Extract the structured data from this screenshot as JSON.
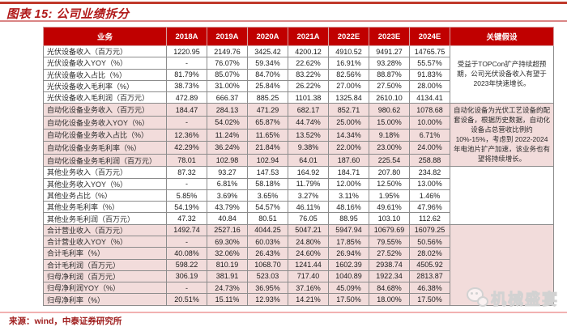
{
  "title": "图表 15: 公司业绩拆分",
  "source": "来源：wind，中泰证券研究所",
  "watermark": {
    "text": "机械盛宴",
    "icon": "wechat-icon"
  },
  "colors": {
    "header_red": "#c00000",
    "band_pink": "#f2dcdb",
    "title_red": "#b01818",
    "source_red": "#a02020"
  },
  "table": {
    "columns": [
      "业务",
      "2018A",
      "2019A",
      "2020A",
      "2021A",
      "2022E",
      "2023E",
      "2024E",
      "关键假设"
    ],
    "rows": [
      {
        "label": "光伏设备收入（百万元）",
        "band": "white",
        "values": [
          "1220.95",
          "2149.76",
          "3425.42",
          "4200.12",
          "4910.52",
          "9491.27",
          "14765.75"
        ]
      },
      {
        "label": "光伏设备收入YOY（%）",
        "band": "white",
        "values": [
          "-",
          "76.07%",
          "59.34%",
          "22.62%",
          "16.91%",
          "93.28%",
          "55.57%"
        ]
      },
      {
        "label": "光伏设备收入占比（%）",
        "band": "white",
        "values": [
          "81.79%",
          "85.07%",
          "84.70%",
          "83.22%",
          "82.56%",
          "88.87%",
          "91.83%"
        ]
      },
      {
        "label": "光伏设备收入毛利率（%）",
        "band": "white",
        "values": [
          "38.73%",
          "31.00%",
          "25.84%",
          "26.22%",
          "27.00%",
          "27.50%",
          "28.00%"
        ]
      },
      {
        "label": "光伏设备收入毛利润（百万元）",
        "band": "white",
        "values": [
          "472.89",
          "666.37",
          "885.25",
          "1101.38",
          "1325.84",
          "2610.10",
          "4134.41"
        ]
      },
      {
        "label": "自动化设备业务收入（百万元）",
        "band": "pink",
        "values": [
          "184.47",
          "284.13",
          "471.29",
          "682.17",
          "852.71",
          "980.62",
          "1078.68"
        ]
      },
      {
        "label": "自动化设备业务收入YOY（%）",
        "band": "pink",
        "values": [
          "-",
          "54.02%",
          "65.87%",
          "44.74%",
          "25.00%",
          "15.00%",
          "10.00%"
        ]
      },
      {
        "label": "自动化设备业务收入占比（%）",
        "band": "pink",
        "values": [
          "12.36%",
          "11.24%",
          "11.65%",
          "13.52%",
          "14.34%",
          "9.18%",
          "6.71%"
        ]
      },
      {
        "label": "自动化设备业务毛利率（%）",
        "band": "pink",
        "values": [
          "42.29%",
          "36.24%",
          "21.84%",
          "9.38%",
          "22.00%",
          "23.00%",
          "24.00%"
        ]
      },
      {
        "label": "自动化设备业务毛利润（百万元）",
        "band": "pink",
        "values": [
          "78.01",
          "102.98",
          "102.94",
          "64.01",
          "187.60",
          "225.54",
          "258.88"
        ]
      },
      {
        "label": "其他业务收入（百万元）",
        "band": "white",
        "values": [
          "87.32",
          "93.27",
          "147.53",
          "164.92",
          "184.71",
          "207.80",
          "234.82"
        ]
      },
      {
        "label": "其他业务收入YOY（%）",
        "band": "white",
        "values": [
          "-",
          "6.81%",
          "58.18%",
          "11.79%",
          "12.00%",
          "12.50%",
          "13.00%"
        ]
      },
      {
        "label": "其他业务占比（%）",
        "band": "white",
        "values": [
          "5.85%",
          "3.69%",
          "3.65%",
          "3.27%",
          "3.11%",
          "1.95%",
          "1.46%"
        ]
      },
      {
        "label": "其他业务毛利率（%）",
        "band": "white",
        "values": [
          "54.19%",
          "43.79%",
          "54.57%",
          "46.11%",
          "48.16%",
          "49.61%",
          "47.96%"
        ]
      },
      {
        "label": "其他业务毛利润（百万元）",
        "band": "white",
        "values": [
          "47.32",
          "40.84",
          "80.51",
          "76.05",
          "88.95",
          "103.10",
          "112.62"
        ]
      },
      {
        "label": "合计营业收入（百万元）",
        "band": "pink",
        "values": [
          "1492.74",
          "2527.16",
          "4044.25",
          "5047.21",
          "5947.94",
          "10679.69",
          "16079.25"
        ]
      },
      {
        "label": "合计营业收入YOY（%）",
        "band": "pink",
        "values": [
          "-",
          "69.30%",
          "60.03%",
          "24.80%",
          "17.85%",
          "79.55%",
          "50.56%"
        ]
      },
      {
        "label": "合计毛利率（%）",
        "band": "pink",
        "values": [
          "40.08%",
          "32.06%",
          "26.43%",
          "24.60%",
          "26.94%",
          "27.52%",
          "28.02%"
        ]
      },
      {
        "label": "合计毛利润（百万元）",
        "band": "pink",
        "values": [
          "598.22",
          "810.19",
          "1068.70",
          "1241.44",
          "1602.39",
          "2938.74",
          "4505.92"
        ]
      },
      {
        "label": "归母净利润（百万元）",
        "band": "pink",
        "values": [
          "306.19",
          "381.91",
          "523.03",
          "717.40",
          "1040.89",
          "1922.34",
          "2813.87"
        ]
      },
      {
        "label": "归母净利润YOY（%）",
        "band": "pink",
        "values": [
          "-",
          "24.73%",
          "36.95%",
          "37.16%",
          "45.09%",
          "84.68%",
          "46.38%"
        ]
      },
      {
        "label": "归母净利率（%）",
        "band": "pink",
        "values": [
          "20.51%",
          "15.11%",
          "12.93%",
          "14.21%",
          "17.50%",
          "18.00%",
          "17.50%"
        ]
      }
    ],
    "assumptions": [
      {
        "span": 5,
        "text": "受益于TOPCon扩产持续超预期，公司光伏设备收入有望于2023年快速增长。"
      },
      {
        "span": 5,
        "text": "自动化设备为光伏工艺设备的配套设备，根据历史数据，自动化设备占总营收比例约10%-15%，考虑到 2022-2024年电池片扩产加速，该业务也有望将持续增长。"
      },
      {
        "span": 5,
        "text": ""
      },
      {
        "span": 7,
        "text": ""
      }
    ]
  }
}
